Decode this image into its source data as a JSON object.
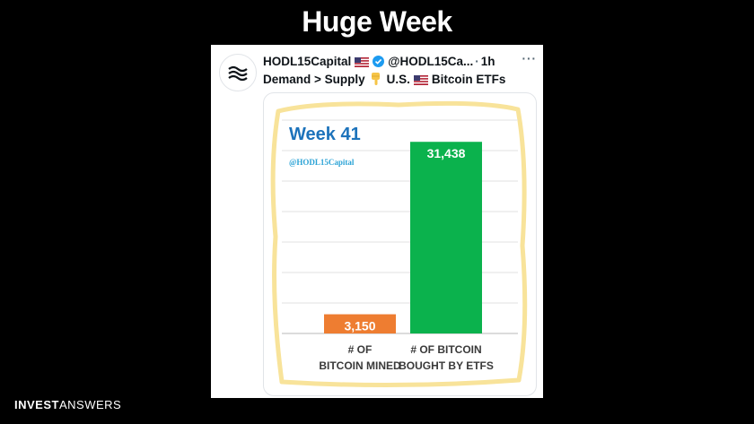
{
  "slide": {
    "title": "Huge Week",
    "brand_strong": "INVEST",
    "brand_light": "ANSWERS"
  },
  "tweet": {
    "display_name": "HODL15Capital",
    "handle": "@HODL15Ca...",
    "separator": "·",
    "time": "1h",
    "more": "···",
    "text_part1": "Demand > Supply",
    "text_part2": "U.S.",
    "text_part3": "Bitcoin ETFs"
  },
  "icons": {
    "avatar": "wave-logo-icon",
    "flag": "us-flag-icon",
    "verified": "verified-badge-icon",
    "pointer": "point-down-icon",
    "more": "more-options-icon"
  },
  "colors": {
    "accent_blue": "#1d73bb",
    "watermark_cyan": "#2ba3d6",
    "bar_orange": "#ee7d31",
    "bar_green": "#0bb24d",
    "frame_yellow": "#f8e39a"
  },
  "chart_data": {
    "type": "bar",
    "title": "Week 41",
    "watermark": "@HODL15Capital",
    "categories": [
      [
        "# OF",
        "BITCOIN MINED"
      ],
      [
        "# OF BITCOIN",
        "BOUGHT BY ETFS"
      ]
    ],
    "values": [
      3150,
      31438
    ],
    "value_labels": [
      "3,150",
      "31,438"
    ],
    "colors": [
      "#ee7d31",
      "#0bb24d"
    ],
    "ylim": [
      0,
      35000
    ],
    "grid": true,
    "xlabel": "",
    "ylabel": ""
  }
}
